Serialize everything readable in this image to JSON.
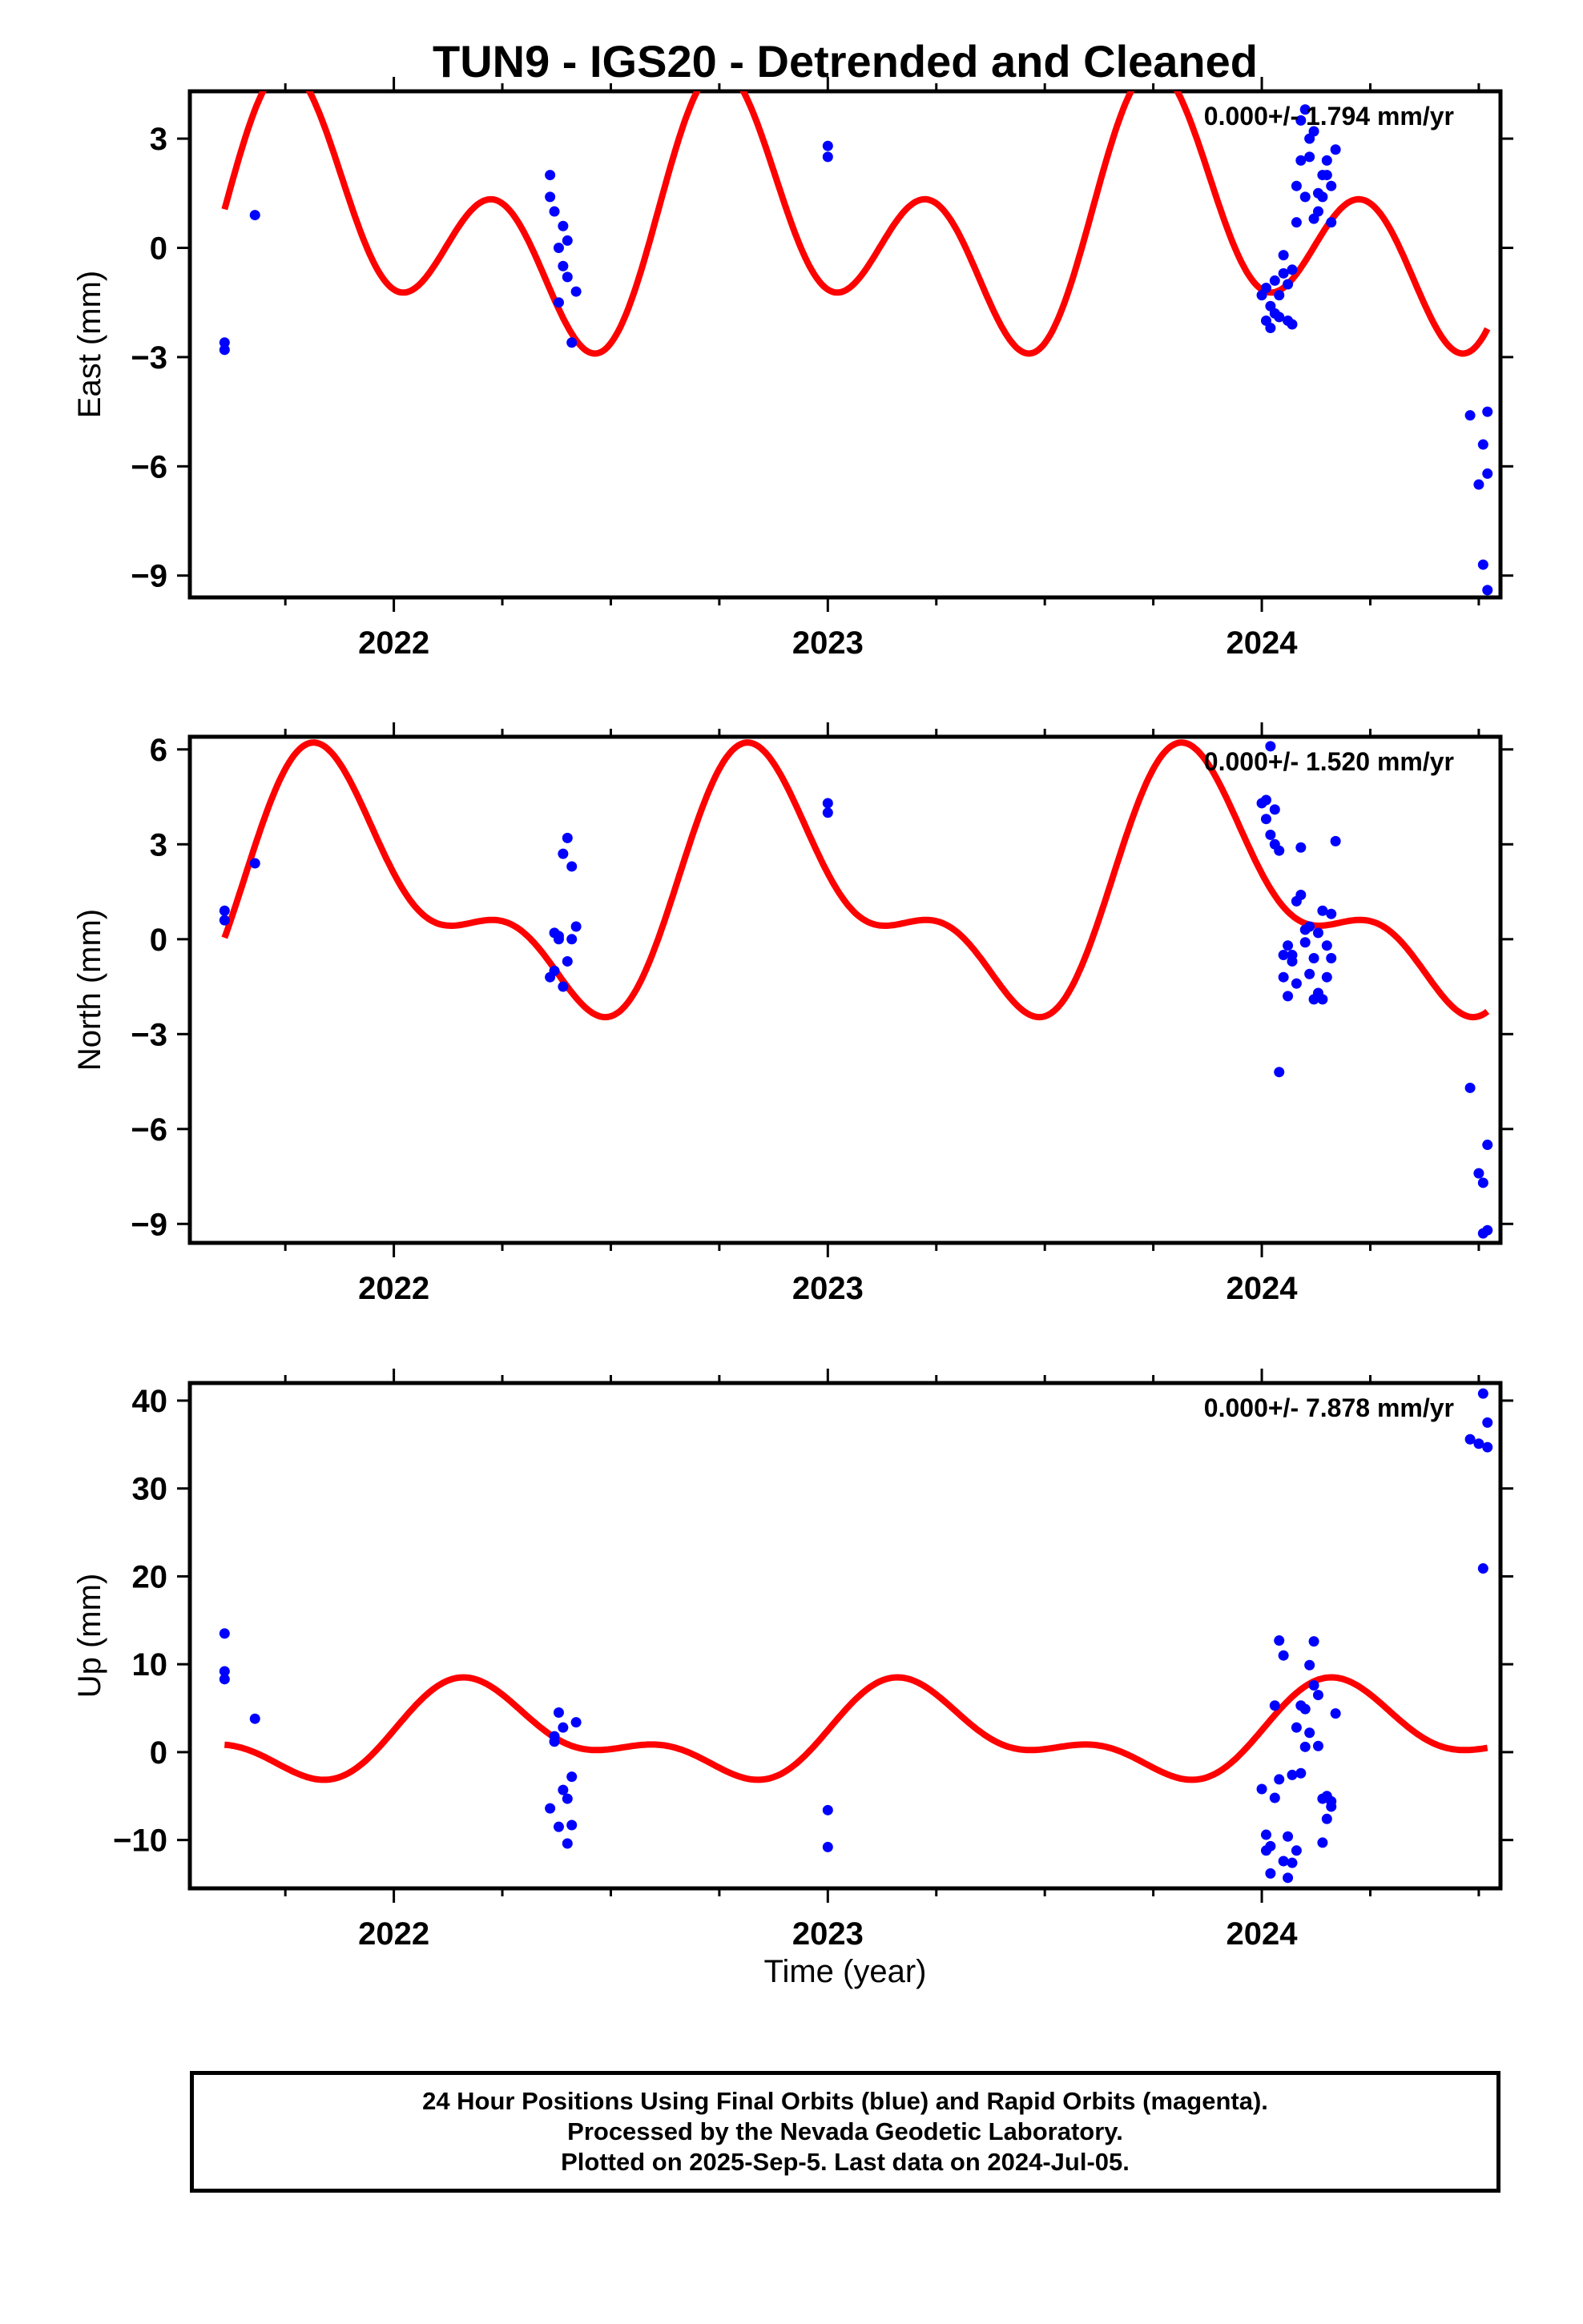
{
  "title": "TUN9 - IGS20 - Detrended and Cleaned",
  "xlabel": "Time (year)",
  "footer": [
    "24 Hour Positions Using Final Orbits (blue) and Rapid Orbits (magenta).",
    "Processed by the Nevada Geodetic Laboratory.",
    "Plotted on 2025-Sep-5. Last data on 2024-Jul-05."
  ],
  "colors": {
    "data": "#0000ff",
    "model": "#ff0000",
    "axes": "#000000"
  },
  "chart_data": [
    {
      "type": "scatter",
      "ylabel": "East (mm)",
      "rate": "0.000+/- 1.794 mm/yr",
      "xlim": [
        2021.53,
        2024.55
      ],
      "ylim": [
        -9.6,
        4.3
      ],
      "xticks": [
        "2022",
        "2023",
        "2024"
      ],
      "yticks": [
        3,
        0,
        -3,
        -6,
        -9
      ],
      "ytick_labels": [
        "3",
        "0",
        "−3",
        "−6",
        "−9"
      ],
      "series": [
        {
          "values": [
            [
              2021.61,
              -2.6
            ],
            [
              2021.61,
              -2.8
            ],
            [
              2021.68,
              0.9
            ],
            [
              2022.36,
              2.0
            ],
            [
              2022.36,
              1.4
            ],
            [
              2022.37,
              1.0
            ],
            [
              2022.38,
              0.0
            ],
            [
              2022.38,
              -1.5
            ],
            [
              2022.39,
              0.6
            ],
            [
              2022.39,
              -0.5
            ],
            [
              2022.4,
              -0.8
            ],
            [
              2022.4,
              0.2
            ],
            [
              2022.41,
              -2.6
            ],
            [
              2022.42,
              -1.2
            ],
            [
              2023.0,
              2.8
            ],
            [
              2023.0,
              2.5
            ],
            [
              2024.0,
              -1.3
            ],
            [
              2024.01,
              -2.0
            ],
            [
              2024.01,
              -1.1
            ],
            [
              2024.02,
              -2.2
            ],
            [
              2024.02,
              -1.6
            ],
            [
              2024.03,
              -1.8
            ],
            [
              2024.03,
              -0.9
            ],
            [
              2024.04,
              -1.9
            ],
            [
              2024.04,
              -1.3
            ],
            [
              2024.05,
              -0.2
            ],
            [
              2024.05,
              -0.7
            ],
            [
              2024.06,
              -1.0
            ],
            [
              2024.06,
              -2.0
            ],
            [
              2024.07,
              -0.6
            ],
            [
              2024.07,
              -2.1
            ],
            [
              2024.08,
              0.7
            ],
            [
              2024.08,
              1.7
            ],
            [
              2024.09,
              3.5
            ],
            [
              2024.09,
              2.4
            ],
            [
              2024.1,
              3.8
            ],
            [
              2024.1,
              1.4
            ],
            [
              2024.11,
              3.0
            ],
            [
              2024.11,
              2.5
            ],
            [
              2024.12,
              3.2
            ],
            [
              2024.12,
              0.8
            ],
            [
              2024.13,
              1.0
            ],
            [
              2024.13,
              1.5
            ],
            [
              2024.14,
              2.0
            ],
            [
              2024.14,
              1.4
            ],
            [
              2024.15,
              2.4
            ],
            [
              2024.15,
              2.0
            ],
            [
              2024.16,
              1.7
            ],
            [
              2024.16,
              0.7
            ],
            [
              2024.17,
              2.7
            ],
            [
              2024.48,
              -4.6
            ],
            [
              2024.5,
              -6.5
            ],
            [
              2024.51,
              -5.4
            ],
            [
              2024.51,
              -8.7
            ],
            [
              2024.52,
              -6.2
            ],
            [
              2024.52,
              -9.4
            ],
            [
              2024.52,
              -4.5
            ]
          ]
        }
      ],
      "model": {
        "offset": 0.6,
        "terms": [
          {
            "amplitude": 2.0,
            "period": 1.0,
            "phase_year": 2021.81
          },
          {
            "amplitude": 2.5,
            "period": 0.5,
            "phase_year": 2021.74
          }
        ]
      }
    },
    {
      "type": "scatter",
      "ylabel": "North (mm)",
      "rate": "0.000+/- 1.520 mm/yr",
      "xlim": [
        2021.53,
        2024.55
      ],
      "ylim": [
        -9.6,
        6.4
      ],
      "xticks": [
        "2022",
        "2023",
        "2024"
      ],
      "yticks": [
        6,
        3,
        0,
        -3,
        -6,
        -9
      ],
      "ytick_labels": [
        "6",
        "3",
        "0",
        "−3",
        "−6",
        "−9"
      ],
      "series": [
        {
          "values": [
            [
              2021.61,
              0.9
            ],
            [
              2021.61,
              0.6
            ],
            [
              2021.68,
              2.4
            ],
            [
              2022.36,
              -1.2
            ],
            [
              2022.37,
              -1.0
            ],
            [
              2022.37,
              0.2
            ],
            [
              2022.38,
              0.1
            ],
            [
              2022.38,
              0.0
            ],
            [
              2022.39,
              2.7
            ],
            [
              2022.39,
              -1.5
            ],
            [
              2022.4,
              3.2
            ],
            [
              2022.4,
              -0.7
            ],
            [
              2022.41,
              2.3
            ],
            [
              2022.41,
              0.0
            ],
            [
              2022.42,
              0.4
            ],
            [
              2023.0,
              4.3
            ],
            [
              2023.0,
              4.0
            ],
            [
              2024.0,
              4.3
            ],
            [
              2024.01,
              4.4
            ],
            [
              2024.01,
              3.8
            ],
            [
              2024.02,
              6.1
            ],
            [
              2024.02,
              3.3
            ],
            [
              2024.03,
              3.0
            ],
            [
              2024.03,
              4.1
            ],
            [
              2024.04,
              2.8
            ],
            [
              2024.04,
              -4.2
            ],
            [
              2024.05,
              -0.5
            ],
            [
              2024.05,
              -1.2
            ],
            [
              2024.06,
              -1.8
            ],
            [
              2024.06,
              -0.2
            ],
            [
              2024.07,
              -0.7
            ],
            [
              2024.07,
              -0.5
            ],
            [
              2024.08,
              -1.4
            ],
            [
              2024.08,
              1.2
            ],
            [
              2024.09,
              2.9
            ],
            [
              2024.09,
              1.4
            ],
            [
              2024.1,
              0.3
            ],
            [
              2024.1,
              -0.1
            ],
            [
              2024.11,
              0.4
            ],
            [
              2024.11,
              -1.1
            ],
            [
              2024.12,
              -1.9
            ],
            [
              2024.12,
              -0.6
            ],
            [
              2024.13,
              0.2
            ],
            [
              2024.13,
              -1.7
            ],
            [
              2024.14,
              0.9
            ],
            [
              2024.14,
              -1.9
            ],
            [
              2024.15,
              -1.2
            ],
            [
              2024.15,
              -0.2
            ],
            [
              2024.16,
              0.8
            ],
            [
              2024.16,
              -0.6
            ],
            [
              2024.17,
              3.1
            ],
            [
              2024.48,
              -4.7
            ],
            [
              2024.5,
              -7.4
            ],
            [
              2024.51,
              -7.7
            ],
            [
              2024.51,
              -9.3
            ],
            [
              2024.52,
              -9.2
            ],
            [
              2024.52,
              -6.5
            ]
          ]
        }
      ],
      "model": {
        "offset": 1.4,
        "terms": [
          {
            "amplitude": 3.3,
            "period": 1.0,
            "phase_year": 2021.87
          },
          {
            "amplitude": 1.8,
            "period": 0.5,
            "phase_year": 2021.79
          }
        ]
      }
    },
    {
      "type": "scatter",
      "ylabel": "Up (mm)",
      "rate": "0.000+/- 7.878 mm/yr",
      "xlim": [
        2021.53,
        2024.55
      ],
      "ylim": [
        -15.5,
        42
      ],
      "xticks": [
        "2022",
        "2023",
        "2024"
      ],
      "yticks": [
        40,
        30,
        20,
        10,
        0,
        -10
      ],
      "ytick_labels": [
        "40",
        "30",
        "20",
        "10",
        "0",
        "−10"
      ],
      "series": [
        {
          "values": [
            [
              2021.61,
              13.5
            ],
            [
              2021.61,
              9.2
            ],
            [
              2021.61,
              8.3
            ],
            [
              2021.68,
              3.8
            ],
            [
              2022.36,
              -6.4
            ],
            [
              2022.37,
              1.8
            ],
            [
              2022.37,
              1.2
            ],
            [
              2022.38,
              -8.5
            ],
            [
              2022.38,
              4.5
            ],
            [
              2022.39,
              2.8
            ],
            [
              2022.39,
              -4.3
            ],
            [
              2022.4,
              -5.3
            ],
            [
              2022.4,
              -10.4
            ],
            [
              2022.41,
              -2.8
            ],
            [
              2022.41,
              -8.3
            ],
            [
              2022.42,
              3.4
            ],
            [
              2023.0,
              -6.6
            ],
            [
              2023.0,
              -10.8
            ],
            [
              2024.0,
              -4.2
            ],
            [
              2024.01,
              -9.4
            ],
            [
              2024.01,
              -11.2
            ],
            [
              2024.02,
              -10.7
            ],
            [
              2024.02,
              -13.8
            ],
            [
              2024.03,
              5.3
            ],
            [
              2024.03,
              -5.2
            ],
            [
              2024.04,
              12.7
            ],
            [
              2024.04,
              -3.1
            ],
            [
              2024.05,
              11.0
            ],
            [
              2024.05,
              -12.4
            ],
            [
              2024.06,
              -9.6
            ],
            [
              2024.06,
              -14.3
            ],
            [
              2024.07,
              -12.6
            ],
            [
              2024.07,
              -2.6
            ],
            [
              2024.08,
              -11.2
            ],
            [
              2024.08,
              2.8
            ],
            [
              2024.09,
              5.3
            ],
            [
              2024.09,
              -2.4
            ],
            [
              2024.1,
              4.9
            ],
            [
              2024.1,
              0.6
            ],
            [
              2024.11,
              9.9
            ],
            [
              2024.11,
              2.2
            ],
            [
              2024.12,
              12.6
            ],
            [
              2024.12,
              7.6
            ],
            [
              2024.13,
              6.5
            ],
            [
              2024.13,
              0.7
            ],
            [
              2024.14,
              -5.3
            ],
            [
              2024.14,
              -10.3
            ],
            [
              2024.15,
              -7.6
            ],
            [
              2024.15,
              -5.0
            ],
            [
              2024.16,
              -5.6
            ],
            [
              2024.16,
              -6.2
            ],
            [
              2024.17,
              4.4
            ],
            [
              2024.48,
              35.6
            ],
            [
              2024.5,
              35.1
            ],
            [
              2024.51,
              20.9
            ],
            [
              2024.51,
              40.8
            ],
            [
              2024.52,
              37.5
            ],
            [
              2024.52,
              34.7
            ]
          ]
        }
      ],
      "model": {
        "offset": 1.9,
        "terms": [
          {
            "amplitude": 4.3,
            "period": 1.0,
            "phase_year": 2022.21
          },
          {
            "amplitude": 2.6,
            "period": 0.5,
            "phase_year": 2022.14
          }
        ]
      }
    }
  ]
}
